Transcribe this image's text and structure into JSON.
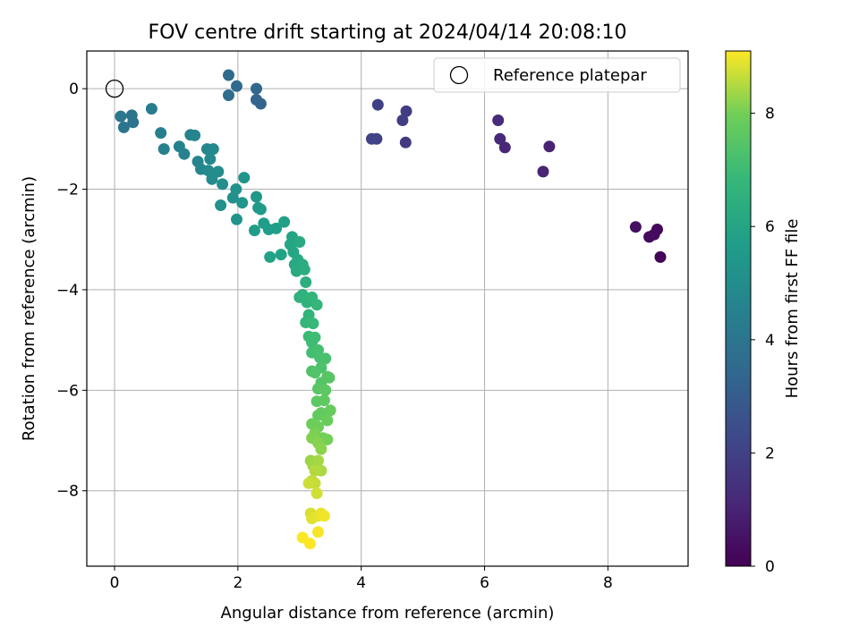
{
  "chart_data": {
    "type": "scatter",
    "title": "FOV centre drift starting at 2024/04/14 20:08:10",
    "xlabel": "Angular distance from reference (arcmin)",
    "ylabel": "Rotation from reference (arcmin)",
    "xlim": [
      -0.45,
      9.3
    ],
    "ylim": [
      -9.5,
      0.75
    ],
    "xticks": [
      0,
      2,
      4,
      6,
      8
    ],
    "yticks": [
      0,
      -2,
      -4,
      -6,
      -8
    ],
    "xtick_labels": [
      "0",
      "2",
      "4",
      "6",
      "8"
    ],
    "ytick_labels": [
      "0",
      "−2",
      "−4",
      "−6",
      "−8"
    ],
    "grid": true,
    "legend": {
      "position": "top-right",
      "label": "Reference platepar"
    },
    "reference_point": {
      "x": 0,
      "y": 0
    },
    "colorbar": {
      "label": "Hours from first FF file",
      "min": 0,
      "max": 9.1,
      "ticks": [
        0,
        2,
        4,
        6,
        8
      ],
      "tick_labels": [
        "0",
        "2",
        "4",
        "6",
        "8"
      ],
      "colormap": "viridis"
    },
    "points": [
      [
        8.85,
        -3.35,
        0.1
      ],
      [
        8.8,
        -2.8,
        0.2
      ],
      [
        8.75,
        -2.9,
        0.25
      ],
      [
        8.67,
        -2.95,
        0.3
      ],
      [
        8.45,
        -2.75,
        0.4
      ],
      [
        7.05,
        -1.15,
        1.0
      ],
      [
        6.95,
        -1.65,
        1.05
      ],
      [
        6.33,
        -1.17,
        1.1
      ],
      [
        6.25,
        -1.0,
        1.15
      ],
      [
        6.22,
        -0.63,
        1.2
      ],
      [
        4.72,
        -1.07,
        1.8
      ],
      [
        4.73,
        -0.45,
        1.85
      ],
      [
        4.67,
        -0.63,
        1.9
      ],
      [
        4.27,
        -0.32,
        2.0
      ],
      [
        4.25,
        -1.0,
        2.05
      ],
      [
        4.17,
        -1.0,
        2.1
      ],
      [
        2.37,
        -0.3,
        3.3
      ],
      [
        2.3,
        -0.22,
        3.35
      ],
      [
        2.3,
        0.0,
        3.4
      ],
      [
        1.98,
        0.05,
        3.5
      ],
      [
        1.85,
        0.27,
        3.55
      ],
      [
        1.85,
        -0.13,
        3.6
      ],
      [
        0.3,
        -0.67,
        3.9
      ],
      [
        0.28,
        -0.53,
        3.95
      ],
      [
        0.15,
        -0.77,
        4.0
      ],
      [
        0.1,
        -0.55,
        4.05
      ],
      [
        0.6,
        -0.4,
        4.3
      ],
      [
        0.75,
        -0.88,
        4.4
      ],
      [
        0.8,
        -1.2,
        4.45
      ],
      [
        1.05,
        -1.15,
        4.5
      ],
      [
        1.13,
        -1.3,
        4.55
      ],
      [
        1.23,
        -0.92,
        4.6
      ],
      [
        1.3,
        -0.93,
        4.62
      ],
      [
        1.35,
        -1.45,
        4.65
      ],
      [
        1.4,
        -1.6,
        4.7
      ],
      [
        1.5,
        -1.2,
        4.75
      ],
      [
        1.55,
        -1.4,
        4.8
      ],
      [
        1.6,
        -1.2,
        4.85
      ],
      [
        1.52,
        -1.63,
        4.9
      ],
      [
        1.58,
        -1.8,
        4.95
      ],
      [
        1.68,
        -1.65,
        5.0
      ],
      [
        1.75,
        -1.9,
        5.05
      ],
      [
        1.72,
        -2.32,
        5.1
      ],
      [
        1.92,
        -2.17,
        5.15
      ],
      [
        1.97,
        -2.0,
        5.2
      ],
      [
        1.98,
        -2.6,
        5.25
      ],
      [
        2.1,
        -1.77,
        5.3
      ],
      [
        2.07,
        -2.27,
        5.35
      ],
      [
        2.3,
        -2.15,
        5.45
      ],
      [
        2.33,
        -2.37,
        5.5
      ],
      [
        2.37,
        -2.4,
        5.55
      ],
      [
        2.27,
        -2.82,
        5.6
      ],
      [
        2.42,
        -2.68,
        5.65
      ],
      [
        2.5,
        -2.8,
        5.7
      ],
      [
        2.62,
        -2.78,
        5.75
      ],
      [
        2.75,
        -2.65,
        5.8
      ],
      [
        2.52,
        -3.35,
        5.85
      ],
      [
        2.7,
        -3.3,
        5.9
      ],
      [
        2.88,
        -2.95,
        5.95
      ],
      [
        2.85,
        -3.1,
        6.0
      ],
      [
        2.9,
        -3.25,
        6.05
      ],
      [
        2.92,
        -3.5,
        6.1
      ],
      [
        2.97,
        -3.4,
        6.15
      ],
      [
        3.0,
        -3.05,
        6.2
      ],
      [
        2.95,
        -3.63,
        6.25
      ],
      [
        3.05,
        -3.5,
        6.3
      ],
      [
        3.08,
        -3.6,
        6.35
      ],
      [
        3.1,
        -3.85,
        6.4
      ],
      [
        3.0,
        -4.15,
        6.5
      ],
      [
        3.05,
        -4.1,
        6.55
      ],
      [
        3.12,
        -4.25,
        6.6
      ],
      [
        3.15,
        -4.5,
        6.65
      ],
      [
        3.2,
        -4.15,
        6.7
      ],
      [
        3.28,
        -4.3,
        6.75
      ],
      [
        3.1,
        -4.65,
        6.8
      ],
      [
        3.22,
        -4.67,
        6.85
      ],
      [
        3.15,
        -4.93,
        6.95
      ],
      [
        3.2,
        -5.05,
        7.0
      ],
      [
        3.25,
        -4.95,
        7.05
      ],
      [
        3.2,
        -5.25,
        7.1
      ],
      [
        3.3,
        -5.2,
        7.15
      ],
      [
        3.33,
        -5.35,
        7.2
      ],
      [
        3.42,
        -5.37,
        7.25
      ],
      [
        3.35,
        -5.55,
        7.3
      ],
      [
        3.2,
        -5.62,
        7.35
      ],
      [
        3.25,
        -5.65,
        7.4
      ],
      [
        3.35,
        -5.85,
        7.45
      ],
      [
        3.45,
        -5.73,
        7.5
      ],
      [
        3.48,
        -5.75,
        7.52
      ],
      [
        3.3,
        -5.97,
        7.55
      ],
      [
        3.28,
        -6.22,
        7.6
      ],
      [
        3.42,
        -6.0,
        7.62
      ],
      [
        3.4,
        -6.2,
        7.65
      ],
      [
        3.35,
        -6.45,
        7.7
      ],
      [
        3.3,
        -6.5,
        7.75
      ],
      [
        3.5,
        -6.4,
        7.8
      ],
      [
        3.45,
        -6.6,
        7.85
      ],
      [
        3.2,
        -6.67,
        7.9
      ],
      [
        3.3,
        -6.73,
        7.92
      ],
      [
        3.38,
        -6.95,
        7.95
      ],
      [
        3.45,
        -6.98,
        8.0
      ],
      [
        3.25,
        -6.85,
        8.05
      ],
      [
        3.2,
        -6.95,
        8.1
      ],
      [
        3.3,
        -7.05,
        8.15
      ],
      [
        3.35,
        -7.17,
        8.2
      ],
      [
        3.18,
        -7.4,
        8.3
      ],
      [
        3.22,
        -7.5,
        8.35
      ],
      [
        3.3,
        -7.4,
        8.4
      ],
      [
        3.35,
        -7.6,
        8.45
      ],
      [
        3.25,
        -7.6,
        8.5
      ],
      [
        3.2,
        -7.8,
        8.6
      ],
      [
        3.25,
        -7.85,
        8.65
      ],
      [
        3.15,
        -7.85,
        8.7
      ],
      [
        3.28,
        -8.05,
        8.75
      ],
      [
        3.18,
        -8.45,
        8.8
      ],
      [
        3.2,
        -8.55,
        8.85
      ],
      [
        3.3,
        -8.5,
        8.9
      ],
      [
        3.35,
        -8.45,
        8.95
      ],
      [
        3.4,
        -8.5,
        9.0
      ],
      [
        3.3,
        -8.82,
        9.05
      ],
      [
        3.05,
        -8.93,
        9.08
      ],
      [
        3.17,
        -9.05,
        9.1
      ]
    ]
  }
}
